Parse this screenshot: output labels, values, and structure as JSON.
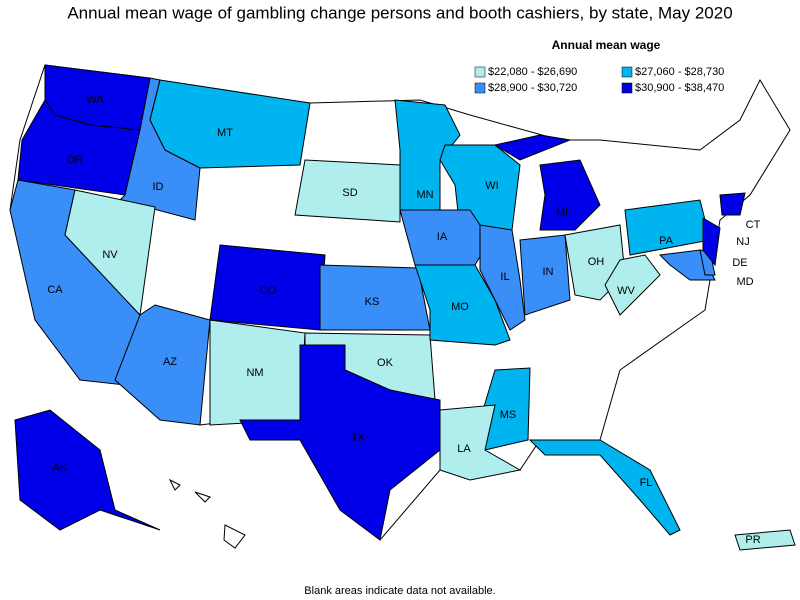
{
  "title": "Annual mean wage of gambling change persons and booth cashiers, by state, May 2020",
  "legend": {
    "title": "Annual mean wage",
    "items": [
      {
        "label": "$22,080 - $26,690",
        "color": "#b0eeee"
      },
      {
        "label": "$27,060 - $28,730",
        "color": "#00b4f0"
      },
      {
        "label": "$28,900 - $30,720",
        "color": "#3a8ef8"
      },
      {
        "label": "$30,900 - $38,470",
        "color": "#0000e8"
      }
    ]
  },
  "states": [
    {
      "label": "WA",
      "color": "#0000e8"
    },
    {
      "label": "OR",
      "color": "#0000e8"
    },
    {
      "label": "ID",
      "color": "#3a8ef8"
    },
    {
      "label": "MT",
      "color": "#00b4f0"
    },
    {
      "label": "CA",
      "color": "#3a8ef8"
    },
    {
      "label": "NV",
      "color": "#b0eeee"
    },
    {
      "label": "AZ",
      "color": "#3a8ef8"
    },
    {
      "label": "NM",
      "color": "#b0eeee"
    },
    {
      "label": "CO",
      "color": "#0000e8"
    },
    {
      "label": "SD",
      "color": "#b0eeee"
    },
    {
      "label": "KS",
      "color": "#3a8ef8"
    },
    {
      "label": "OK",
      "color": "#b0eeee"
    },
    {
      "label": "TX",
      "color": "#0000e8"
    },
    {
      "label": "MN",
      "color": "#00b4f0"
    },
    {
      "label": "WI",
      "color": "#00b4f0"
    },
    {
      "label": "IA",
      "color": "#3a8ef8"
    },
    {
      "label": "MO",
      "color": "#00b4f0"
    },
    {
      "label": "IL",
      "color": "#3a8ef8"
    },
    {
      "label": "IN",
      "color": "#3a8ef8"
    },
    {
      "label": "MI",
      "color": "#0000e8"
    },
    {
      "label": "OH",
      "color": "#b0eeee"
    },
    {
      "label": "WV",
      "color": "#b0eeee"
    },
    {
      "label": "PA",
      "color": "#00b4f0"
    },
    {
      "label": "MD",
      "color": "#3a8ef8"
    },
    {
      "label": "DE",
      "color": "#3a8ef8"
    },
    {
      "label": "NJ",
      "color": "#0000e8"
    },
    {
      "label": "CT",
      "color": "#0000e8"
    },
    {
      "label": "MS",
      "color": "#00b4f0"
    },
    {
      "label": "LA",
      "color": "#b0eeee"
    },
    {
      "label": "FL",
      "color": "#00b4f0"
    },
    {
      "label": "AK",
      "color": "#0000e8"
    },
    {
      "label": "PR",
      "color": "#b0eeee"
    }
  ],
  "footnote": "Blank areas indicate data not available."
}
